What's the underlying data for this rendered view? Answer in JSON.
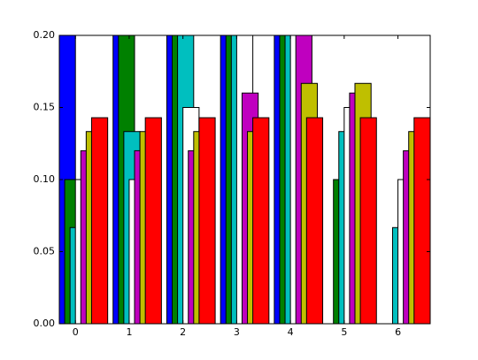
{
  "chart_data": {
    "type": "bar",
    "x": [
      0,
      1,
      2,
      3,
      4,
      5,
      6
    ],
    "xlim": [
      -0.3,
      6.6
    ],
    "xticks": [
      0,
      1,
      2,
      3,
      4,
      5,
      6
    ],
    "ylim": [
      0,
      0.2
    ],
    "yticks": [
      {
        "value": 0,
        "label": "0.00"
      },
      {
        "value": 0.05,
        "label": "0.05"
      },
      {
        "value": 0.1,
        "label": "0.10"
      },
      {
        "value": 0.15,
        "label": "0.15"
      },
      {
        "value": 0.2,
        "label": "0.20"
      }
    ],
    "series": [
      {
        "color": "#0000ff",
        "values": [
          0.2,
          0.2,
          0.2,
          0.2,
          0.2,
          0,
          0
        ]
      },
      {
        "color": "#008000",
        "values": [
          0.1,
          0.2,
          0.2,
          0.2,
          0.2,
          0.1,
          0
        ]
      },
      {
        "color": "#00bfbf",
        "values": [
          0.0667,
          0.1333,
          0.2,
          0.2,
          0.2,
          0.1333,
          0.0667
        ]
      },
      {
        "color": "#ffffff",
        "values": [
          0.1,
          0.1,
          0.15,
          0.2,
          0.2,
          0.15,
          0.1
        ]
      },
      {
        "color": "#bf00bf",
        "values": [
          0.12,
          0.12,
          0.12,
          0.16,
          0.2,
          0.16,
          0.12
        ]
      },
      {
        "color": "#bfbf00",
        "values": [
          0.1333,
          0.1333,
          0.1333,
          0.1333,
          0.1667,
          0.1667,
          0.1333
        ]
      },
      {
        "color": "#ff0000",
        "values": [
          0.1429,
          0.1429,
          0.1429,
          0.1429,
          0.1429,
          0.1429,
          0.1429
        ]
      }
    ]
  }
}
